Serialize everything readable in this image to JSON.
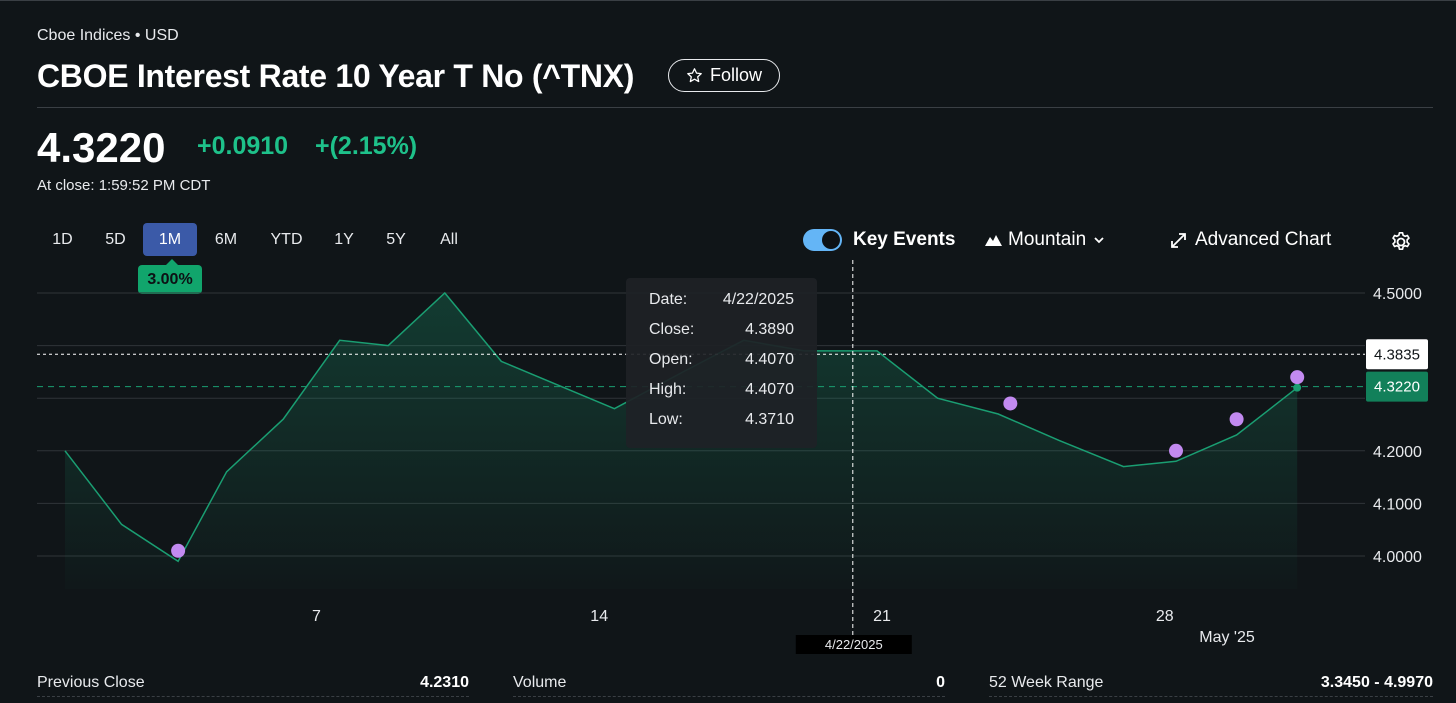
{
  "header": {
    "exchange": "Cboe Indices • USD",
    "title": "CBOE Interest Rate 10 Year T No (^TNX)",
    "follow_label": "Follow"
  },
  "quote": {
    "price": "4.3220",
    "change": "+0.0910",
    "change_pct": "+(2.15%)",
    "close_time": "At close: 1:59:52 PM CDT"
  },
  "toolbar": {
    "ranges": [
      "1D",
      "5D",
      "1M",
      "6M",
      "YTD",
      "1Y",
      "5Y",
      "All"
    ],
    "active_range": "1M",
    "performance": "3.00%",
    "key_events_label": "Key Events",
    "chart_type_label": "Mountain",
    "advanced_label": "Advanced Chart"
  },
  "tooltip": {
    "rows": [
      {
        "label": "Date:",
        "value": "4/22/2025"
      },
      {
        "label": "Close:",
        "value": "4.3890"
      },
      {
        "label": "Open:",
        "value": "4.4070"
      },
      {
        "label": "High:",
        "value": "4.4070"
      },
      {
        "label": "Low:",
        "value": "4.3710"
      }
    ]
  },
  "stats": {
    "previous_close_label": "Previous Close",
    "previous_close_value": "4.2310",
    "volume_label": "Volume",
    "volume_value": "0",
    "range_label": "52 Week Range",
    "range_value": "3.3450 - 4.9970"
  },
  "colors": {
    "background": "#101518",
    "line": "#1a9e72",
    "positive": "#1ec18a",
    "event_marker": "#c28af0",
    "active_tab": "#3b5aa8"
  },
  "chart_data": {
    "type": "area",
    "title": "",
    "xlabel": "",
    "ylabel": "",
    "ylim": [
      3.93,
      4.52
    ],
    "grid": true,
    "x_ticks": [
      {
        "label": "7",
        "day": 7
      },
      {
        "label": "14",
        "day": 14
      },
      {
        "label": "21",
        "day": 21
      },
      {
        "label": "28",
        "day": 28
      },
      {
        "label": "May '25",
        "day": 31
      }
    ],
    "y_ticks": [
      "4.5000",
      "4.2000",
      "4.1000",
      "4.0000"
    ],
    "series": [
      {
        "points": [
          {
            "day": 1,
            "y": 4.2
          },
          {
            "day": 2.4,
            "y": 4.06
          },
          {
            "day": 3.8,
            "y": 3.99
          },
          {
            "day": 5,
            "y": 4.16
          },
          {
            "day": 6.4,
            "y": 4.26
          },
          {
            "day": 7.8,
            "y": 4.41
          },
          {
            "day": 9,
            "y": 4.4
          },
          {
            "day": 10.4,
            "y": 4.5
          },
          {
            "day": 11.8,
            "y": 4.37
          },
          {
            "day": 14.6,
            "y": 4.28
          },
          {
            "day": 16.3,
            "y": 4.35
          },
          {
            "day": 17.8,
            "y": 4.41
          },
          {
            "day": 19.3,
            "y": 4.39
          },
          {
            "day": 21.1,
            "y": 4.39
          },
          {
            "day": 22.6,
            "y": 4.3
          },
          {
            "day": 24.1,
            "y": 4.27
          },
          {
            "day": 25.6,
            "y": 4.22
          },
          {
            "day": 27.2,
            "y": 4.17
          },
          {
            "day": 28.5,
            "y": 4.18
          },
          {
            "day": 30.0,
            "y": 4.23
          },
          {
            "day": 31.5,
            "y": 4.32
          }
        ]
      }
    ],
    "events": [
      {
        "day": 3.8,
        "y": 4.01
      },
      {
        "day": 24.4,
        "y": 4.29
      },
      {
        "day": 28.5,
        "y": 4.2
      },
      {
        "day": 30.0,
        "y": 4.26
      },
      {
        "day": 31.5,
        "y": 4.34
      }
    ],
    "reference_lines": [
      {
        "label": "4.3835",
        "y": 4.3835,
        "style": "dotted-white"
      },
      {
        "label": "4.3220",
        "y": 4.322,
        "style": "dashed-green"
      }
    ],
    "crosshair": {
      "label": "4/22/2025",
      "day": 20.5
    }
  }
}
